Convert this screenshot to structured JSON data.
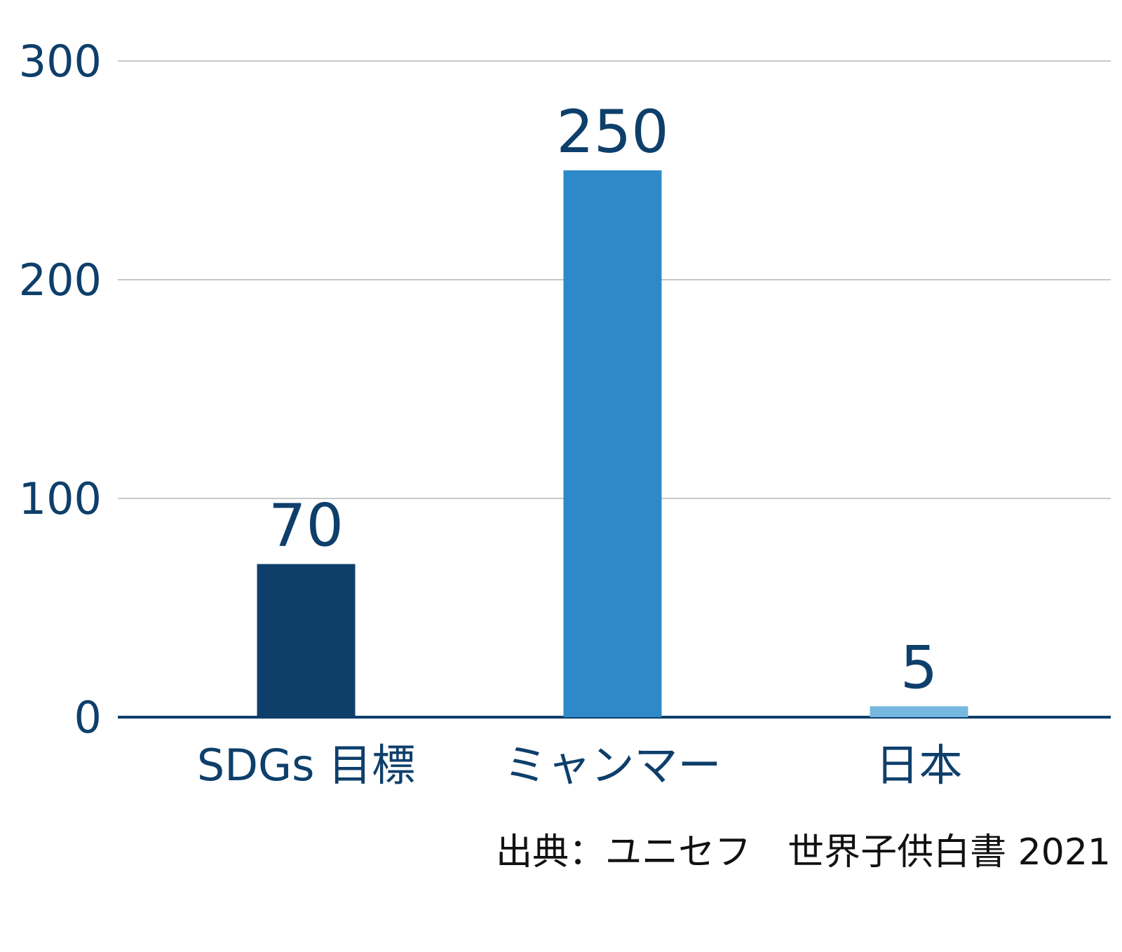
{
  "chart_data": {
    "type": "bar",
    "categories": [
      "SDGs 目標",
      "ミャンマー",
      "日本"
    ],
    "values": [
      70,
      250,
      5
    ],
    "data_labels": [
      "70",
      "250",
      "5"
    ],
    "y_ticks": [
      0,
      100,
      200,
      300
    ],
    "ylim": [
      0,
      300
    ],
    "grid": true,
    "source": "出典：ユニセフ　世界子供白書 2021",
    "colors": {
      "bars": [
        "#0e3f6b",
        "#2e89c8",
        "#76b8df"
      ],
      "text": "#0e3f6b",
      "grid": "#c8c8c8",
      "axis": "#0e3f6b",
      "source_text": "#111111"
    }
  }
}
